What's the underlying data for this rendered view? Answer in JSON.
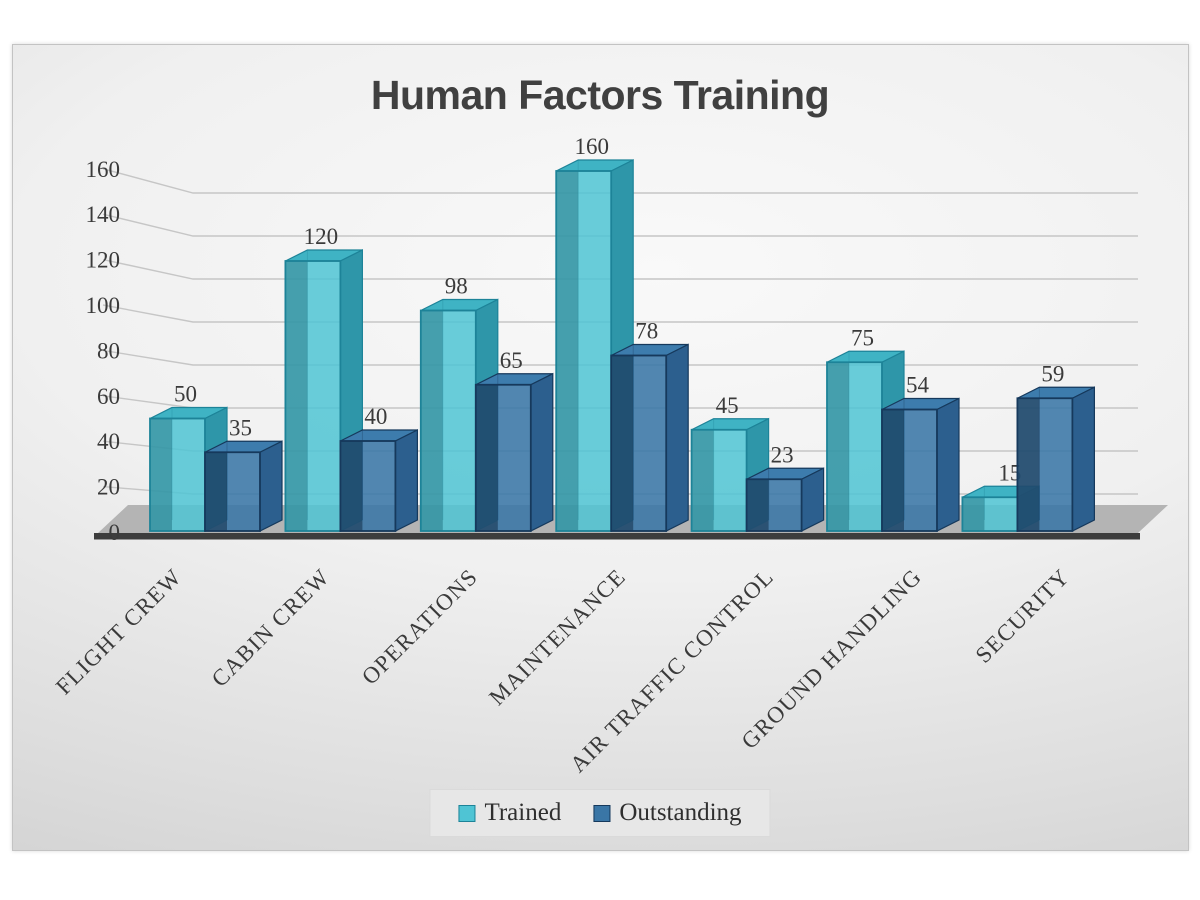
{
  "slide": {
    "background_light": "#f9f9f9",
    "background_dark": "#cfcfcf",
    "floor_color": "#b4b4b4",
    "baseline_color": "#3d3d3d",
    "gridline_color": "#c6c6c6"
  },
  "chart_data": {
    "type": "bar",
    "style": "3d-clustered-column",
    "title": "Human Factors Training",
    "categories": [
      "FLIGHT CREW",
      "CABIN CREW",
      "OPERATIONS",
      "MAINTENANCE",
      "AIR TRAFFIC CONTROL",
      "GROUND HANDLING",
      "SECURITY"
    ],
    "series": [
      {
        "name": "Trained",
        "values": [
          50,
          120,
          98,
          160,
          45,
          75,
          15
        ],
        "color": "#4fc4d4",
        "top_color": "#3fb3c4",
        "side_color": "#2e96a9",
        "edge_color": "#1d8398",
        "inner_shade": "rgba(13,86,102,0.38)",
        "front_opacity": 0.85
      },
      {
        "name": "Outstanding",
        "values": [
          35,
          40,
          65,
          78,
          23,
          54,
          59
        ],
        "color": "#3a76a6",
        "top_color": "#3d7cad",
        "side_color": "#2c5f8e",
        "edge_color": "#16395c",
        "inner_shade": "rgba(6,28,52,0.45)",
        "front_opacity": 0.88
      }
    ],
    "y_axis": {
      "min": 0,
      "max": 160,
      "tick_step": 20,
      "ticks": [
        0,
        20,
        40,
        60,
        80,
        100,
        120,
        140,
        160
      ]
    },
    "x_axis_label_rotation_deg": 45,
    "data_labels_visible": true,
    "gridlines_visible": true,
    "legend": {
      "position": "bottom",
      "entries": [
        "Trained",
        "Outstanding"
      ]
    }
  },
  "text_colors": {
    "title": "#404040",
    "axis_labels": "#3a3a3a",
    "data_labels": "#3f3f3f"
  }
}
